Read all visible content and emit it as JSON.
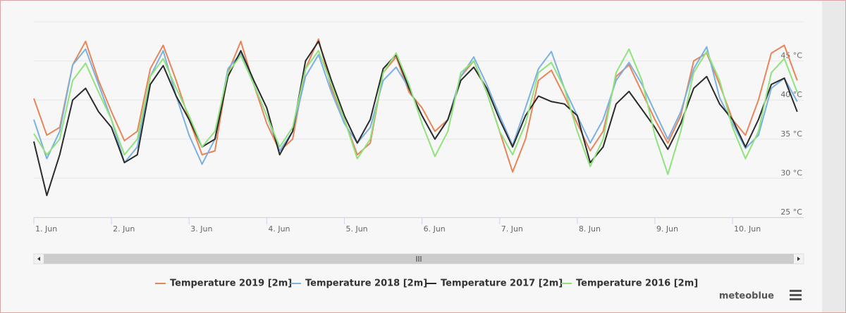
{
  "chart_data": {
    "type": "line",
    "x": [
      0,
      4,
      8,
      12,
      16,
      20,
      24,
      28,
      32,
      36,
      40,
      44,
      48,
      52,
      56,
      60,
      64,
      68,
      72,
      76,
      80,
      84,
      88,
      92,
      96,
      100,
      104,
      108,
      112,
      116,
      120,
      124,
      128,
      132,
      136,
      140,
      144,
      148,
      152,
      156,
      160,
      164,
      168,
      172,
      176,
      180,
      184,
      188,
      192,
      196,
      200,
      204,
      208,
      212,
      216,
      220,
      224,
      228,
      232,
      236
    ],
    "xlim": [
      0,
      238
    ],
    "xticks": [
      {
        "value": 0,
        "label": "1. Jun"
      },
      {
        "value": 24,
        "label": "2. Jun"
      },
      {
        "value": 48,
        "label": "3. Jun"
      },
      {
        "value": 72,
        "label": "4. Jun"
      },
      {
        "value": 96,
        "label": "5. Jun"
      },
      {
        "value": 120,
        "label": "6. Jun"
      },
      {
        "value": 144,
        "label": "7. Jun"
      },
      {
        "value": 168,
        "label": "8. Jun"
      },
      {
        "value": 192,
        "label": "9. Jun"
      },
      {
        "value": 216,
        "label": "10. Jun"
      }
    ],
    "ylim": [
      25,
      50
    ],
    "yticks": [
      {
        "value": 25,
        "label": "25 °C"
      },
      {
        "value": 30,
        "label": "30 °C"
      },
      {
        "value": 35,
        "label": "35 °C"
      },
      {
        "value": 40,
        "label": "40 °C"
      },
      {
        "value": 45,
        "label": "45 °C"
      }
    ],
    "grid": true,
    "series": [
      {
        "name": "Temperature 2019 [2m]",
        "color": "#e8845a",
        "values": [
          40.2,
          35.5,
          36.5,
          44.5,
          47.5,
          42.5,
          38.5,
          34.8,
          36,
          44,
          47,
          42.5,
          37.5,
          33,
          33.5,
          43.5,
          47.5,
          42,
          37,
          33.5,
          35,
          44,
          47.8,
          41.5,
          37.5,
          33,
          34.5,
          43.5,
          45.5,
          41,
          39,
          36,
          37.5,
          43,
          45,
          41,
          36,
          30.8,
          35,
          42.5,
          43.8,
          40.5,
          37,
          33.5,
          36,
          43,
          44.5,
          41,
          37.5,
          34.5,
          38,
          45,
          46,
          42,
          37.5,
          35.5,
          40,
          46,
          47,
          42.5
        ]
      },
      {
        "name": "Temperature 2018 [2m]",
        "color": "#7cb0e0",
        "values": [
          37.5,
          32.5,
          36,
          44.5,
          46.5,
          42,
          37.5,
          32,
          34,
          43,
          46.3,
          40.5,
          35.5,
          31.8,
          35,
          44,
          46,
          42,
          38,
          33.5,
          36,
          43,
          45.8,
          41,
          37,
          34.5,
          36.5,
          42.5,
          44.2,
          41.5,
          38,
          35,
          37.5,
          43,
          45.5,
          42,
          38,
          34.2,
          39,
          44,
          46.2,
          41.5,
          38,
          34.5,
          37.5,
          42.5,
          44.8,
          42,
          38.5,
          35,
          38.5,
          44,
          46.8,
          40.3,
          37,
          33.8,
          35.5,
          41.5,
          42.8,
          39.8
        ]
      },
      {
        "name": "Temperature 2017 [2m]",
        "color": "#2b2b2b",
        "values": [
          34.7,
          27.8,
          33,
          40,
          41.5,
          38.5,
          36.5,
          32,
          33,
          42,
          44.4,
          40.5,
          37.5,
          34,
          35,
          43,
          46.3,
          42.5,
          39,
          33,
          36,
          45,
          47.5,
          42.5,
          38,
          34.5,
          37.5,
          44,
          45.8,
          41.5,
          38,
          35,
          37.5,
          42.5,
          44.2,
          41.5,
          37.5,
          34,
          38,
          40.5,
          39.8,
          39.5,
          38,
          32,
          34,
          39.5,
          41.1,
          38.8,
          36.5,
          33.7,
          37,
          41.5,
          43,
          39.5,
          37.5,
          34,
          37.5,
          42,
          42.8,
          38.5
        ]
      },
      {
        "name": "Temperature 2016 [2m]",
        "color": "#90e27c",
        "values": [
          35.7,
          33,
          35,
          42.5,
          44.7,
          41,
          37.5,
          33,
          35,
          43,
          45.3,
          41.5,
          38,
          34,
          36,
          43.5,
          45.7,
          42,
          38,
          34,
          36.5,
          44,
          46.3,
          42,
          37.5,
          32.5,
          35,
          43.5,
          46,
          42,
          37,
          32.8,
          36,
          43.5,
          45,
          41,
          36,
          33,
          37,
          43.5,
          44.8,
          41.5,
          36,
          31.5,
          35,
          43.5,
          46.5,
          42.5,
          35.5,
          30.5,
          36,
          43.5,
          46.2,
          42.5,
          36.5,
          32.5,
          36,
          43.5,
          45.3,
          41
        ]
      }
    ],
    "credits": "meteoblue"
  }
}
